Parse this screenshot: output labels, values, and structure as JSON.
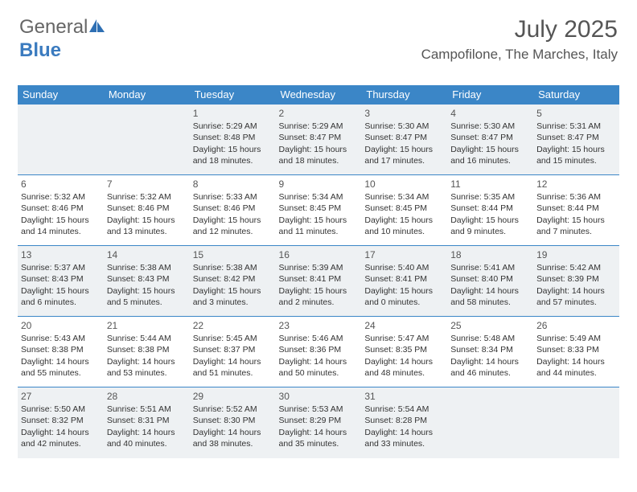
{
  "brand": {
    "part1": "General",
    "part2": "Blue"
  },
  "header": {
    "month_title": "July 2025",
    "location": "Campofilone, The Marches, Italy"
  },
  "colors": {
    "accent": "#3b86c7",
    "shade": "#eef1f3",
    "text": "#333333"
  },
  "weekdays": [
    "Sunday",
    "Monday",
    "Tuesday",
    "Wednesday",
    "Thursday",
    "Friday",
    "Saturday"
  ],
  "weeks": [
    {
      "shaded": true,
      "days": [
        null,
        null,
        {
          "n": "1",
          "sr": "Sunrise: 5:29 AM",
          "ss": "Sunset: 8:48 PM",
          "d1": "Daylight: 15 hours",
          "d2": "and 18 minutes."
        },
        {
          "n": "2",
          "sr": "Sunrise: 5:29 AM",
          "ss": "Sunset: 8:47 PM",
          "d1": "Daylight: 15 hours",
          "d2": "and 18 minutes."
        },
        {
          "n": "3",
          "sr": "Sunrise: 5:30 AM",
          "ss": "Sunset: 8:47 PM",
          "d1": "Daylight: 15 hours",
          "d2": "and 17 minutes."
        },
        {
          "n": "4",
          "sr": "Sunrise: 5:30 AM",
          "ss": "Sunset: 8:47 PM",
          "d1": "Daylight: 15 hours",
          "d2": "and 16 minutes."
        },
        {
          "n": "5",
          "sr": "Sunrise: 5:31 AM",
          "ss": "Sunset: 8:47 PM",
          "d1": "Daylight: 15 hours",
          "d2": "and 15 minutes."
        }
      ]
    },
    {
      "shaded": false,
      "days": [
        {
          "n": "6",
          "sr": "Sunrise: 5:32 AM",
          "ss": "Sunset: 8:46 PM",
          "d1": "Daylight: 15 hours",
          "d2": "and 14 minutes."
        },
        {
          "n": "7",
          "sr": "Sunrise: 5:32 AM",
          "ss": "Sunset: 8:46 PM",
          "d1": "Daylight: 15 hours",
          "d2": "and 13 minutes."
        },
        {
          "n": "8",
          "sr": "Sunrise: 5:33 AM",
          "ss": "Sunset: 8:46 PM",
          "d1": "Daylight: 15 hours",
          "d2": "and 12 minutes."
        },
        {
          "n": "9",
          "sr": "Sunrise: 5:34 AM",
          "ss": "Sunset: 8:45 PM",
          "d1": "Daylight: 15 hours",
          "d2": "and 11 minutes."
        },
        {
          "n": "10",
          "sr": "Sunrise: 5:34 AM",
          "ss": "Sunset: 8:45 PM",
          "d1": "Daylight: 15 hours",
          "d2": "and 10 minutes."
        },
        {
          "n": "11",
          "sr": "Sunrise: 5:35 AM",
          "ss": "Sunset: 8:44 PM",
          "d1": "Daylight: 15 hours",
          "d2": "and 9 minutes."
        },
        {
          "n": "12",
          "sr": "Sunrise: 5:36 AM",
          "ss": "Sunset: 8:44 PM",
          "d1": "Daylight: 15 hours",
          "d2": "and 7 minutes."
        }
      ]
    },
    {
      "shaded": true,
      "days": [
        {
          "n": "13",
          "sr": "Sunrise: 5:37 AM",
          "ss": "Sunset: 8:43 PM",
          "d1": "Daylight: 15 hours",
          "d2": "and 6 minutes."
        },
        {
          "n": "14",
          "sr": "Sunrise: 5:38 AM",
          "ss": "Sunset: 8:43 PM",
          "d1": "Daylight: 15 hours",
          "d2": "and 5 minutes."
        },
        {
          "n": "15",
          "sr": "Sunrise: 5:38 AM",
          "ss": "Sunset: 8:42 PM",
          "d1": "Daylight: 15 hours",
          "d2": "and 3 minutes."
        },
        {
          "n": "16",
          "sr": "Sunrise: 5:39 AM",
          "ss": "Sunset: 8:41 PM",
          "d1": "Daylight: 15 hours",
          "d2": "and 2 minutes."
        },
        {
          "n": "17",
          "sr": "Sunrise: 5:40 AM",
          "ss": "Sunset: 8:41 PM",
          "d1": "Daylight: 15 hours",
          "d2": "and 0 minutes."
        },
        {
          "n": "18",
          "sr": "Sunrise: 5:41 AM",
          "ss": "Sunset: 8:40 PM",
          "d1": "Daylight: 14 hours",
          "d2": "and 58 minutes."
        },
        {
          "n": "19",
          "sr": "Sunrise: 5:42 AM",
          "ss": "Sunset: 8:39 PM",
          "d1": "Daylight: 14 hours",
          "d2": "and 57 minutes."
        }
      ]
    },
    {
      "shaded": false,
      "days": [
        {
          "n": "20",
          "sr": "Sunrise: 5:43 AM",
          "ss": "Sunset: 8:38 PM",
          "d1": "Daylight: 14 hours",
          "d2": "and 55 minutes."
        },
        {
          "n": "21",
          "sr": "Sunrise: 5:44 AM",
          "ss": "Sunset: 8:38 PM",
          "d1": "Daylight: 14 hours",
          "d2": "and 53 minutes."
        },
        {
          "n": "22",
          "sr": "Sunrise: 5:45 AM",
          "ss": "Sunset: 8:37 PM",
          "d1": "Daylight: 14 hours",
          "d2": "and 51 minutes."
        },
        {
          "n": "23",
          "sr": "Sunrise: 5:46 AM",
          "ss": "Sunset: 8:36 PM",
          "d1": "Daylight: 14 hours",
          "d2": "and 50 minutes."
        },
        {
          "n": "24",
          "sr": "Sunrise: 5:47 AM",
          "ss": "Sunset: 8:35 PM",
          "d1": "Daylight: 14 hours",
          "d2": "and 48 minutes."
        },
        {
          "n": "25",
          "sr": "Sunrise: 5:48 AM",
          "ss": "Sunset: 8:34 PM",
          "d1": "Daylight: 14 hours",
          "d2": "and 46 minutes."
        },
        {
          "n": "26",
          "sr": "Sunrise: 5:49 AM",
          "ss": "Sunset: 8:33 PM",
          "d1": "Daylight: 14 hours",
          "d2": "and 44 minutes."
        }
      ]
    },
    {
      "shaded": true,
      "days": [
        {
          "n": "27",
          "sr": "Sunrise: 5:50 AM",
          "ss": "Sunset: 8:32 PM",
          "d1": "Daylight: 14 hours",
          "d2": "and 42 minutes."
        },
        {
          "n": "28",
          "sr": "Sunrise: 5:51 AM",
          "ss": "Sunset: 8:31 PM",
          "d1": "Daylight: 14 hours",
          "d2": "and 40 minutes."
        },
        {
          "n": "29",
          "sr": "Sunrise: 5:52 AM",
          "ss": "Sunset: 8:30 PM",
          "d1": "Daylight: 14 hours",
          "d2": "and 38 minutes."
        },
        {
          "n": "30",
          "sr": "Sunrise: 5:53 AM",
          "ss": "Sunset: 8:29 PM",
          "d1": "Daylight: 14 hours",
          "d2": "and 35 minutes."
        },
        {
          "n": "31",
          "sr": "Sunrise: 5:54 AM",
          "ss": "Sunset: 8:28 PM",
          "d1": "Daylight: 14 hours",
          "d2": "and 33 minutes."
        },
        null,
        null
      ]
    }
  ]
}
